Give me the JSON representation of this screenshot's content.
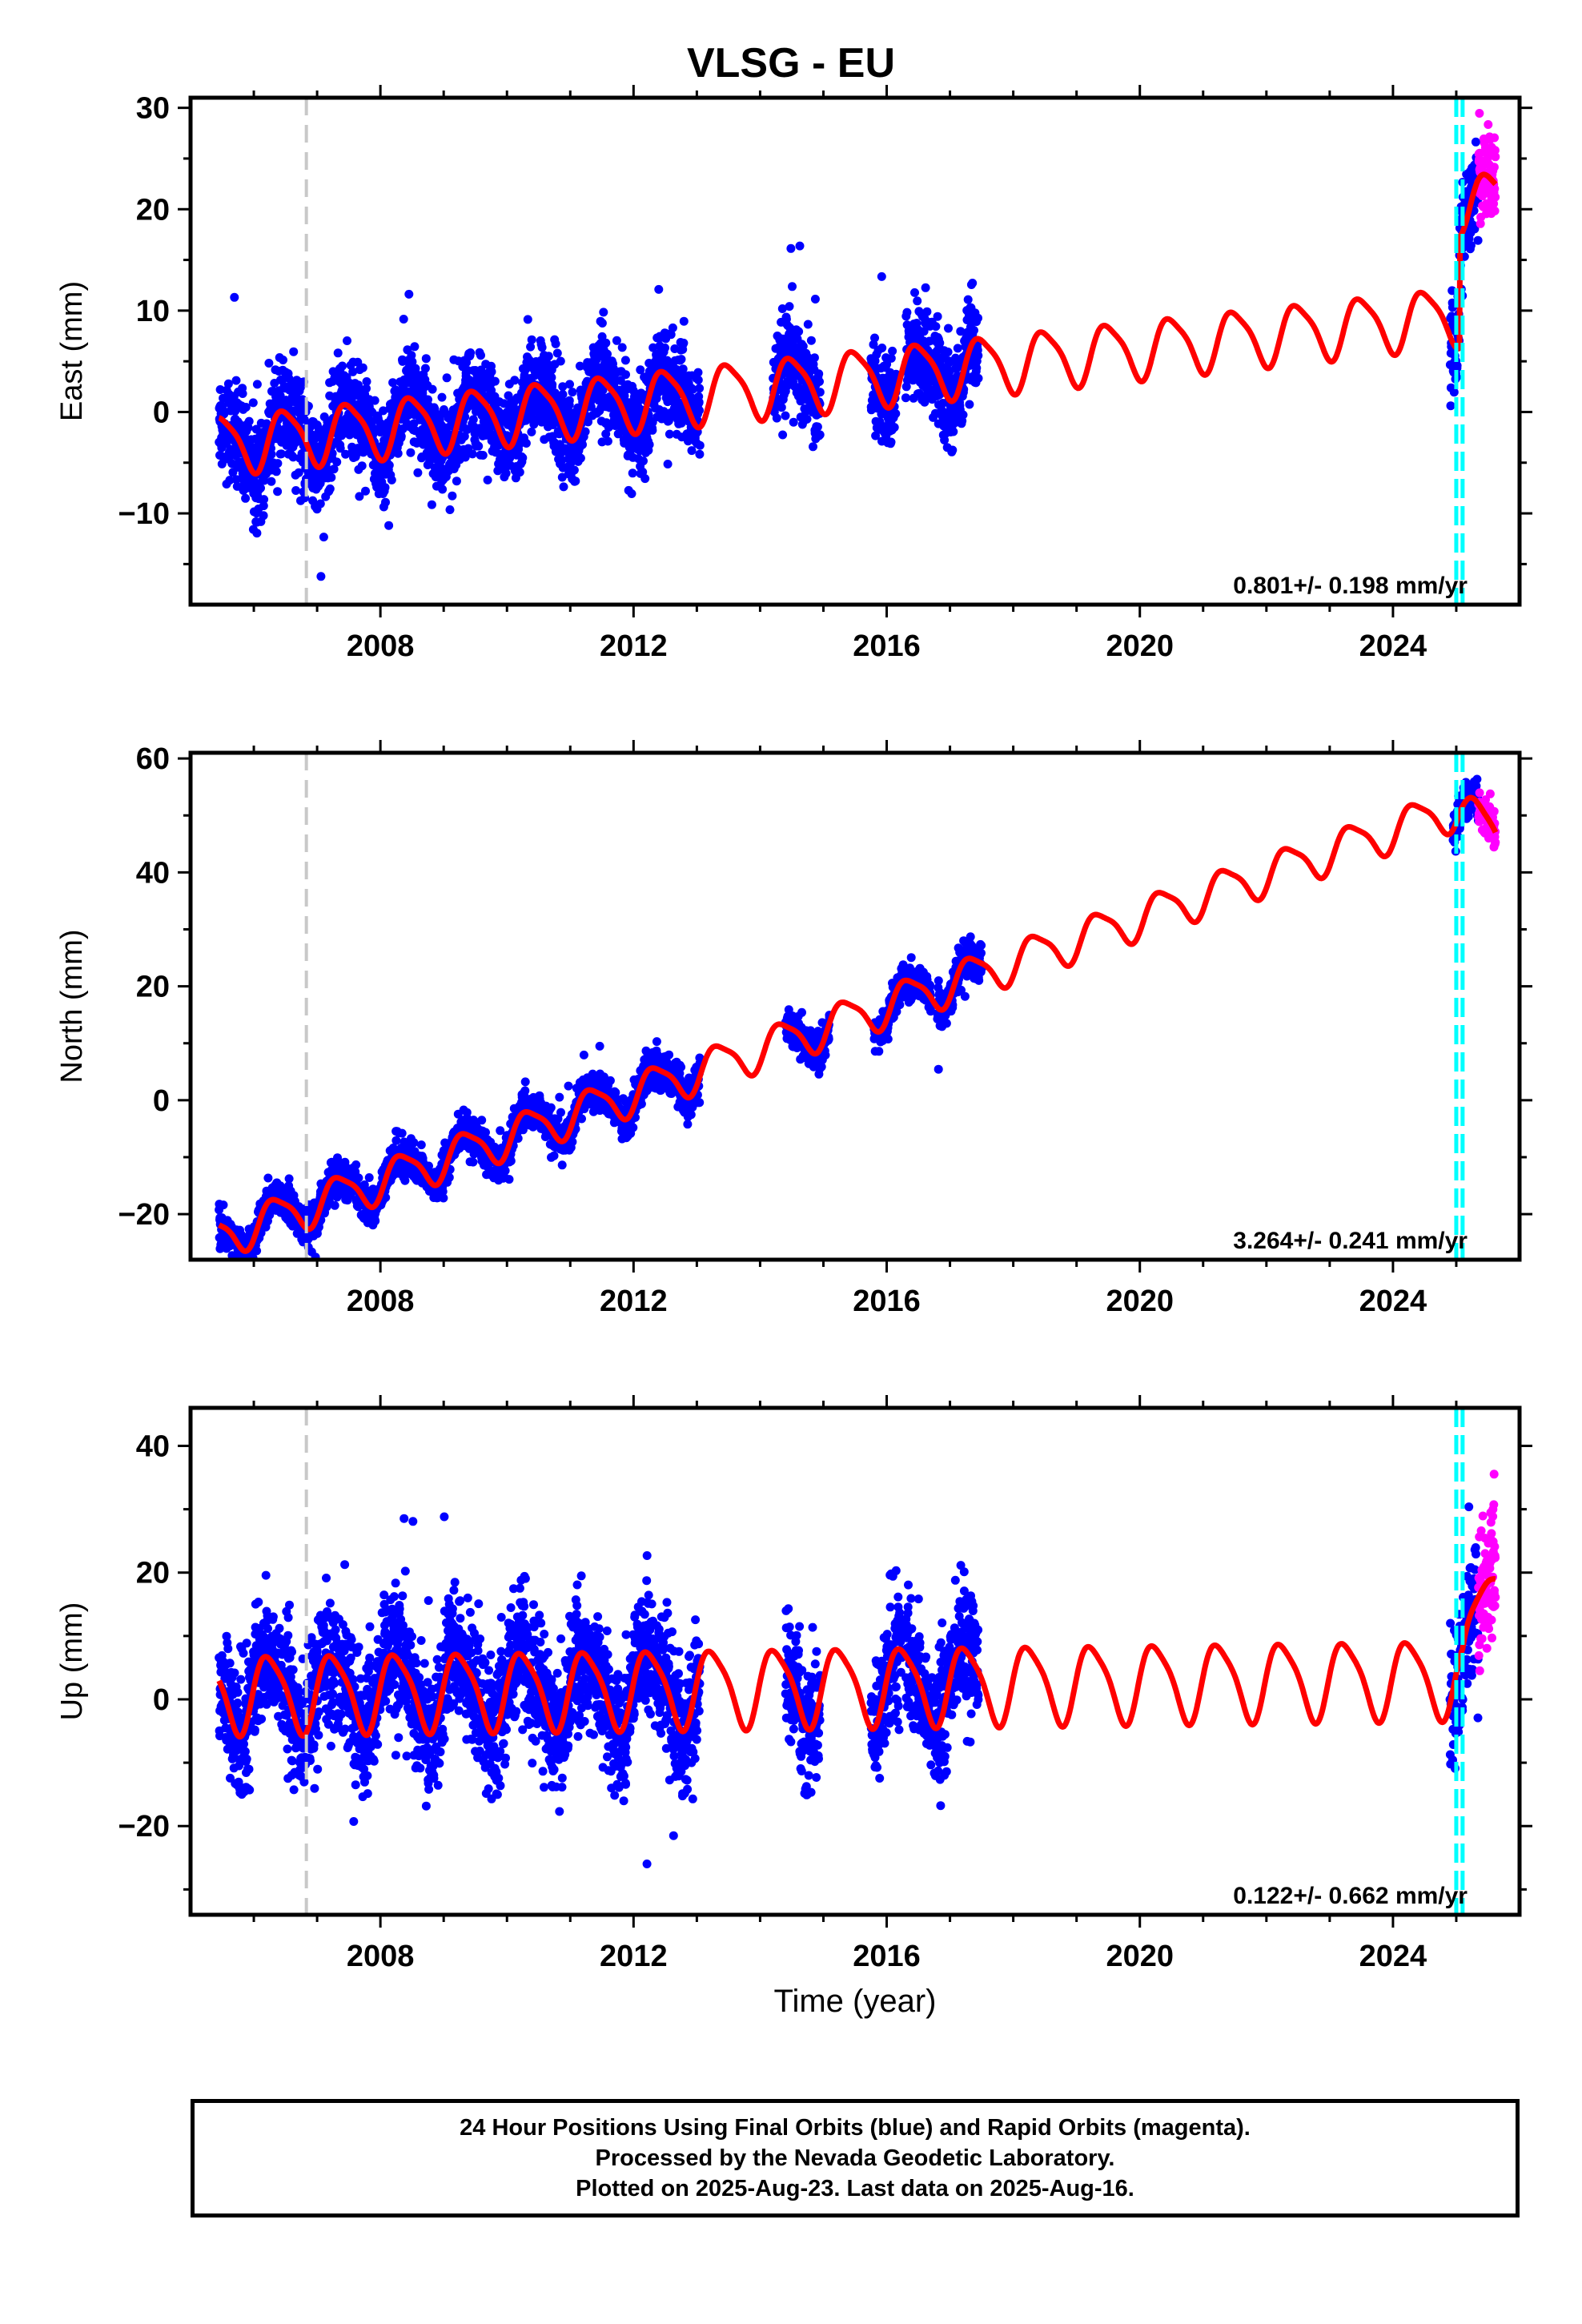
{
  "title": "VLSG - EU",
  "xlabel": "Time (year)",
  "colors": {
    "final_orbits": "#0000ff",
    "rapid_orbits": "#ff00ff",
    "model": "#ff0000",
    "equipment_change": "#c8c8c8",
    "offsets": "#00ffff"
  },
  "footer": {
    "line1": "24 Hour Positions Using Final Orbits (blue) and Rapid Orbits (magenta).",
    "line2": "Processed by the Nevada Geodetic Laboratory.",
    "line3": "Plotted on 2025-Aug-23. Last data on 2025-Aug-16."
  },
  "chart_data": [
    {
      "type": "scatter",
      "component": "east",
      "ylabel": "East (mm)",
      "xlim": [
        2005.0,
        2026.0
      ],
      "ylim": [
        -19,
        31
      ],
      "xticks": [
        2008,
        2012,
        2016,
        2020,
        2024
      ],
      "yticks": [
        -10,
        0,
        10,
        20,
        30
      ],
      "ytick_labels": [
        "−10",
        "0",
        "10",
        "20",
        "30"
      ],
      "rate": "0.801+/- 0.198 mm/yr",
      "model": {
        "c0": -3.2,
        "trend": 0.65,
        "a1": 2.8,
        "a2": 0.6,
        "phase1": 0.25,
        "steps": [
          {
            "t": 2025.05,
            "dy": 11.0
          }
        ]
      },
      "data_segments": [
        [
          2005.45,
          2013.05
        ],
        [
          2014.2,
          2014.95
        ],
        [
          2015.75,
          2016.15
        ],
        [
          2016.3,
          2017.45
        ],
        [
          2024.9,
          2025.62
        ]
      ],
      "scatter_sd": 2.3,
      "rapid_range": [
        2025.35,
        2025.62
      ],
      "equipment_change": [
        2006.83
      ],
      "offsets": [
        2025.0,
        2025.1
      ]
    },
    {
      "type": "scatter",
      "component": "north",
      "ylabel": "North (mm)",
      "xlim": [
        2005.0,
        2026.0
      ],
      "ylim": [
        -28,
        61
      ],
      "xticks": [
        2008,
        2012,
        2016,
        2020,
        2024
      ],
      "yticks": [
        -20,
        0,
        20,
        40,
        60
      ],
      "ytick_labels": [
        "−20",
        "0",
        "20",
        "40",
        "60"
      ],
      "rate": "3.264+/- 0.241 mm/yr",
      "model": {
        "c0": -24.0,
        "trend": 3.85,
        "a1": 3.5,
        "a2": 0.8,
        "phase1": 0.1,
        "steps": [],
        "post": {
          "t": 2025.05,
          "slope": -12.0
        }
      },
      "data_segments": [
        [
          2005.45,
          2013.05
        ],
        [
          2014.4,
          2015.1
        ],
        [
          2015.8,
          2016.7
        ],
        [
          2016.8,
          2017.5
        ],
        [
          2024.95,
          2025.62
        ]
      ],
      "scatter_sd": 1.6,
      "rapid_range": [
        2025.35,
        2025.62
      ],
      "equipment_change": [
        2006.83
      ],
      "offsets": [
        2025.0,
        2025.1
      ]
    },
    {
      "type": "scatter",
      "component": "up",
      "ylabel": "Up (mm)",
      "xlim": [
        2005.0,
        2026.0
      ],
      "ylim": [
        -34,
        46
      ],
      "xticks": [
        2008,
        2012,
        2016,
        2020,
        2024
      ],
      "yticks": [
        -20,
        0,
        20,
        40
      ],
      "ytick_labels": [
        "−20",
        "0",
        "20",
        "40"
      ],
      "rate": "0.122+/- 0.662 mm/yr",
      "model": {
        "c0": 1.0,
        "trend": 0.12,
        "a1": 6.0,
        "a2": 1.2,
        "phase1": 0.0,
        "steps": [],
        "post": {
          "t": 2025.1,
          "slope": 36.0
        }
      },
      "data_segments": [
        [
          2005.45,
          2013.05
        ],
        [
          2014.4,
          2014.95
        ],
        [
          2015.75,
          2016.25
        ],
        [
          2016.3,
          2017.45
        ],
        [
          2024.9,
          2025.62
        ]
      ],
      "scatter_sd": 5.0,
      "rapid_range": [
        2025.35,
        2025.62
      ],
      "equipment_change": [
        2006.83
      ],
      "offsets": [
        2025.0,
        2025.1
      ]
    }
  ]
}
